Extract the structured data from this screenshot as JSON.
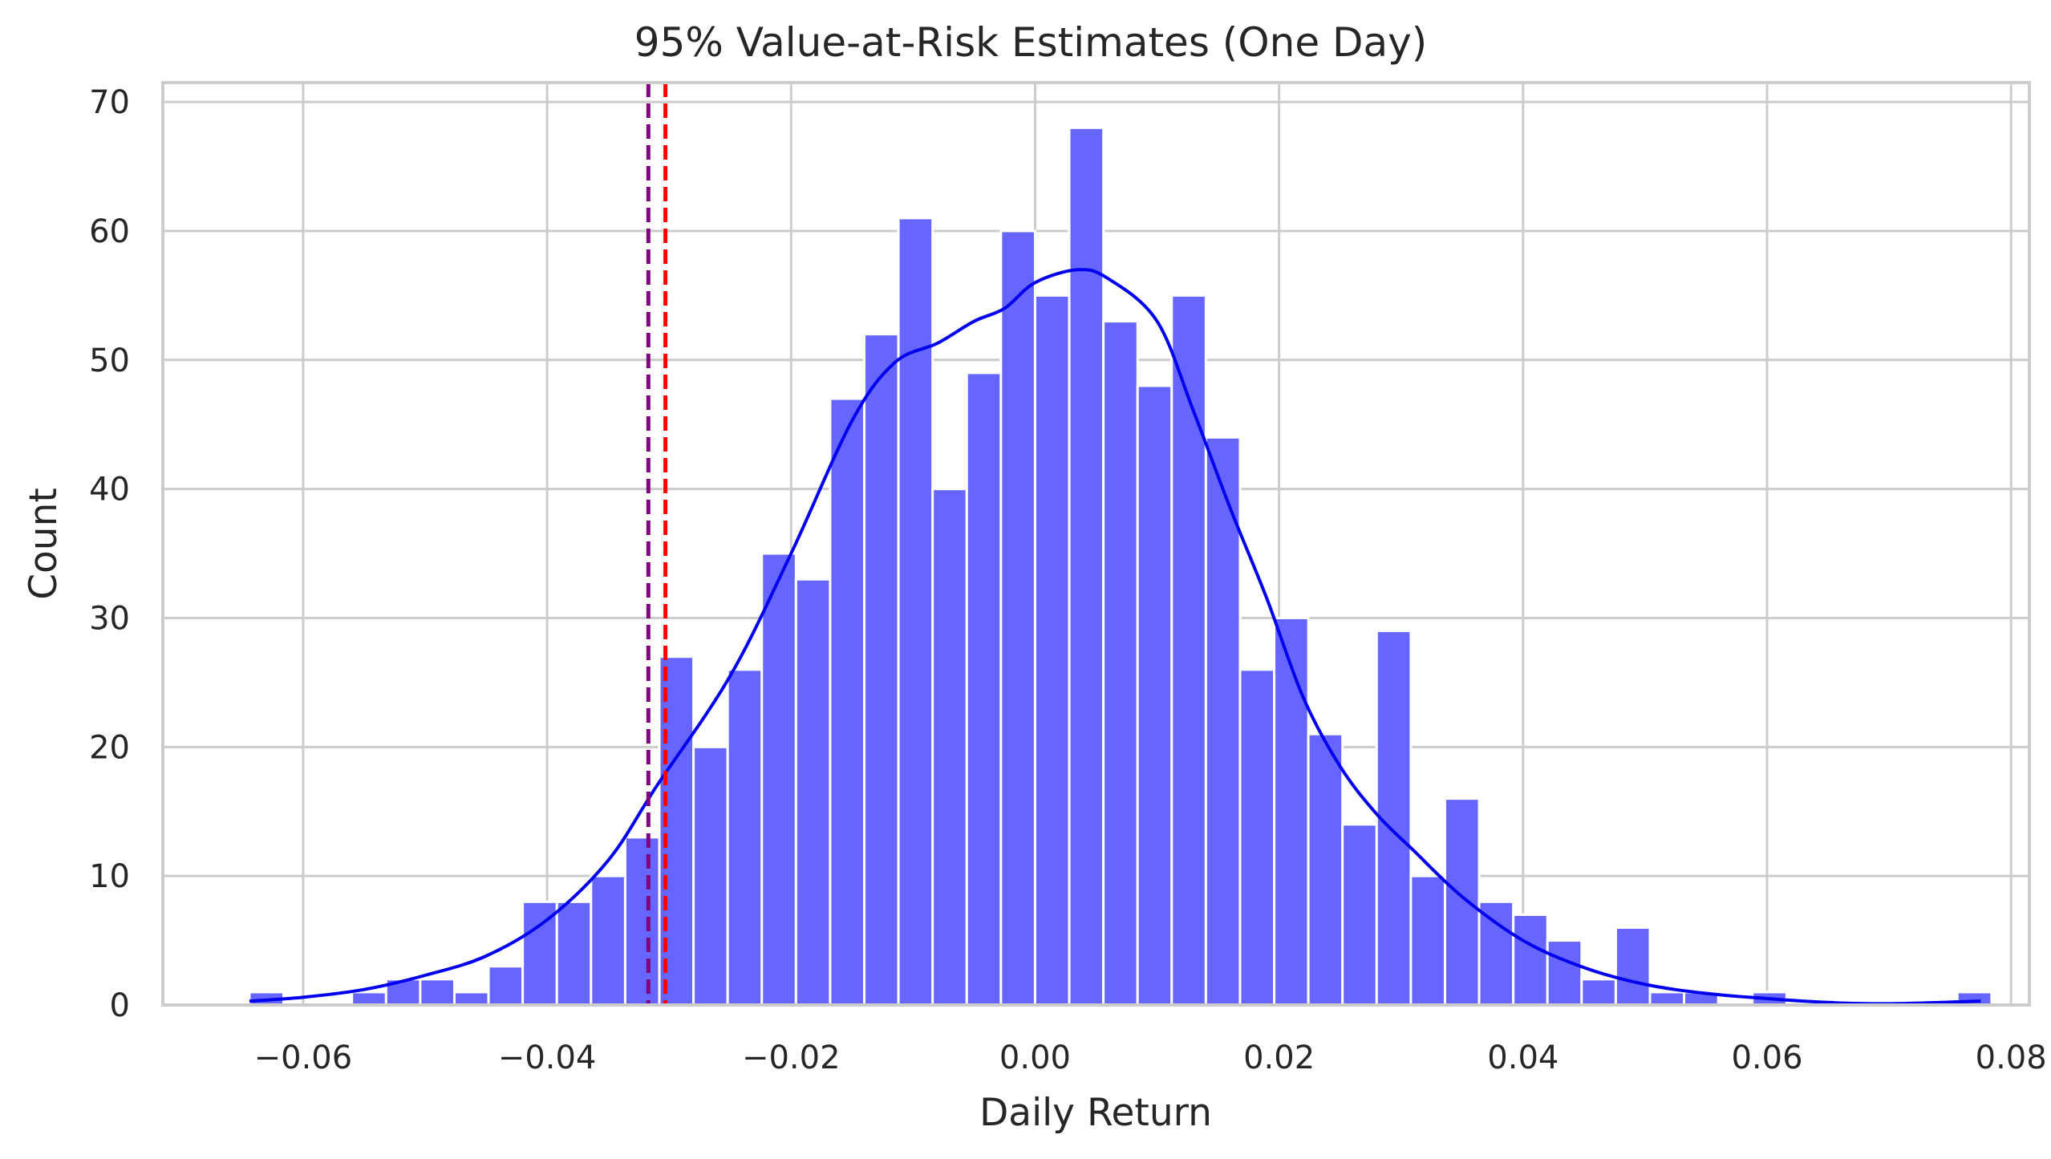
{
  "chart_data": {
    "type": "bar",
    "title": "95% Value-at-Risk Estimates (One Day)",
    "xlabel": "Daily Return",
    "ylabel": "Count",
    "xlim": [
      -0.0715,
      0.0815
    ],
    "ylim": [
      0,
      71.5
    ],
    "xticks": [
      -0.06,
      -0.04,
      -0.02,
      0.0,
      0.02,
      0.04,
      0.06,
      0.08
    ],
    "xtick_labels": [
      "−0.06",
      "−0.04",
      "−0.02",
      "0.00",
      "0.02",
      "0.04",
      "0.06",
      "0.08"
    ],
    "yticks": [
      0,
      10,
      20,
      30,
      40,
      50,
      60,
      70
    ],
    "ytick_labels": [
      "0",
      "10",
      "20",
      "30",
      "40",
      "50",
      "60",
      "70"
    ],
    "grid": true,
    "bin_start": -0.0644,
    "bin_width": 0.0028,
    "counts": [
      1,
      0,
      0,
      1,
      2,
      2,
      1,
      3,
      8,
      8,
      10,
      13,
      27,
      20,
      26,
      35,
      33,
      47,
      52,
      61,
      40,
      49,
      60,
      55,
      68,
      53,
      48,
      55,
      44,
      26,
      30,
      21,
      14,
      29,
      10,
      16,
      8,
      7,
      5,
      2,
      6,
      1,
      1,
      0,
      1,
      0,
      0,
      0,
      0,
      0,
      1
    ],
    "bar_color": "#6666ff",
    "series": [
      {
        "kind": "kde",
        "color": "#0000ee",
        "x": [
          -0.0644,
          -0.06,
          -0.055,
          -0.05,
          -0.045,
          -0.04,
          -0.035,
          -0.031,
          -0.025,
          -0.02,
          -0.015,
          -0.0115,
          -0.008,
          -0.005,
          -0.0025,
          0.0,
          0.0035,
          0.006,
          0.01,
          0.013,
          0.016,
          0.019,
          0.022,
          0.025,
          0.028,
          0.031,
          0.035,
          0.04,
          0.045,
          0.05,
          0.055,
          0.06,
          0.065,
          0.07,
          0.0775
        ],
        "y": [
          0.3,
          0.6,
          1.2,
          2.3,
          3.8,
          6.6,
          11.2,
          17.0,
          25.5,
          35.0,
          45.3,
          49.8,
          51.3,
          53.0,
          54.0,
          56.0,
          57.0,
          56.3,
          53.0,
          46.0,
          38.5,
          31.5,
          23.8,
          18.5,
          14.8,
          12.0,
          8.4,
          5.0,
          2.9,
          1.6,
          0.9,
          0.5,
          0.2,
          0.1,
          0.3
        ]
      }
    ],
    "vlines": [
      {
        "x": -0.0317,
        "color": "#800080"
      },
      {
        "x": -0.0303,
        "color": "#ff0000"
      }
    ]
  }
}
